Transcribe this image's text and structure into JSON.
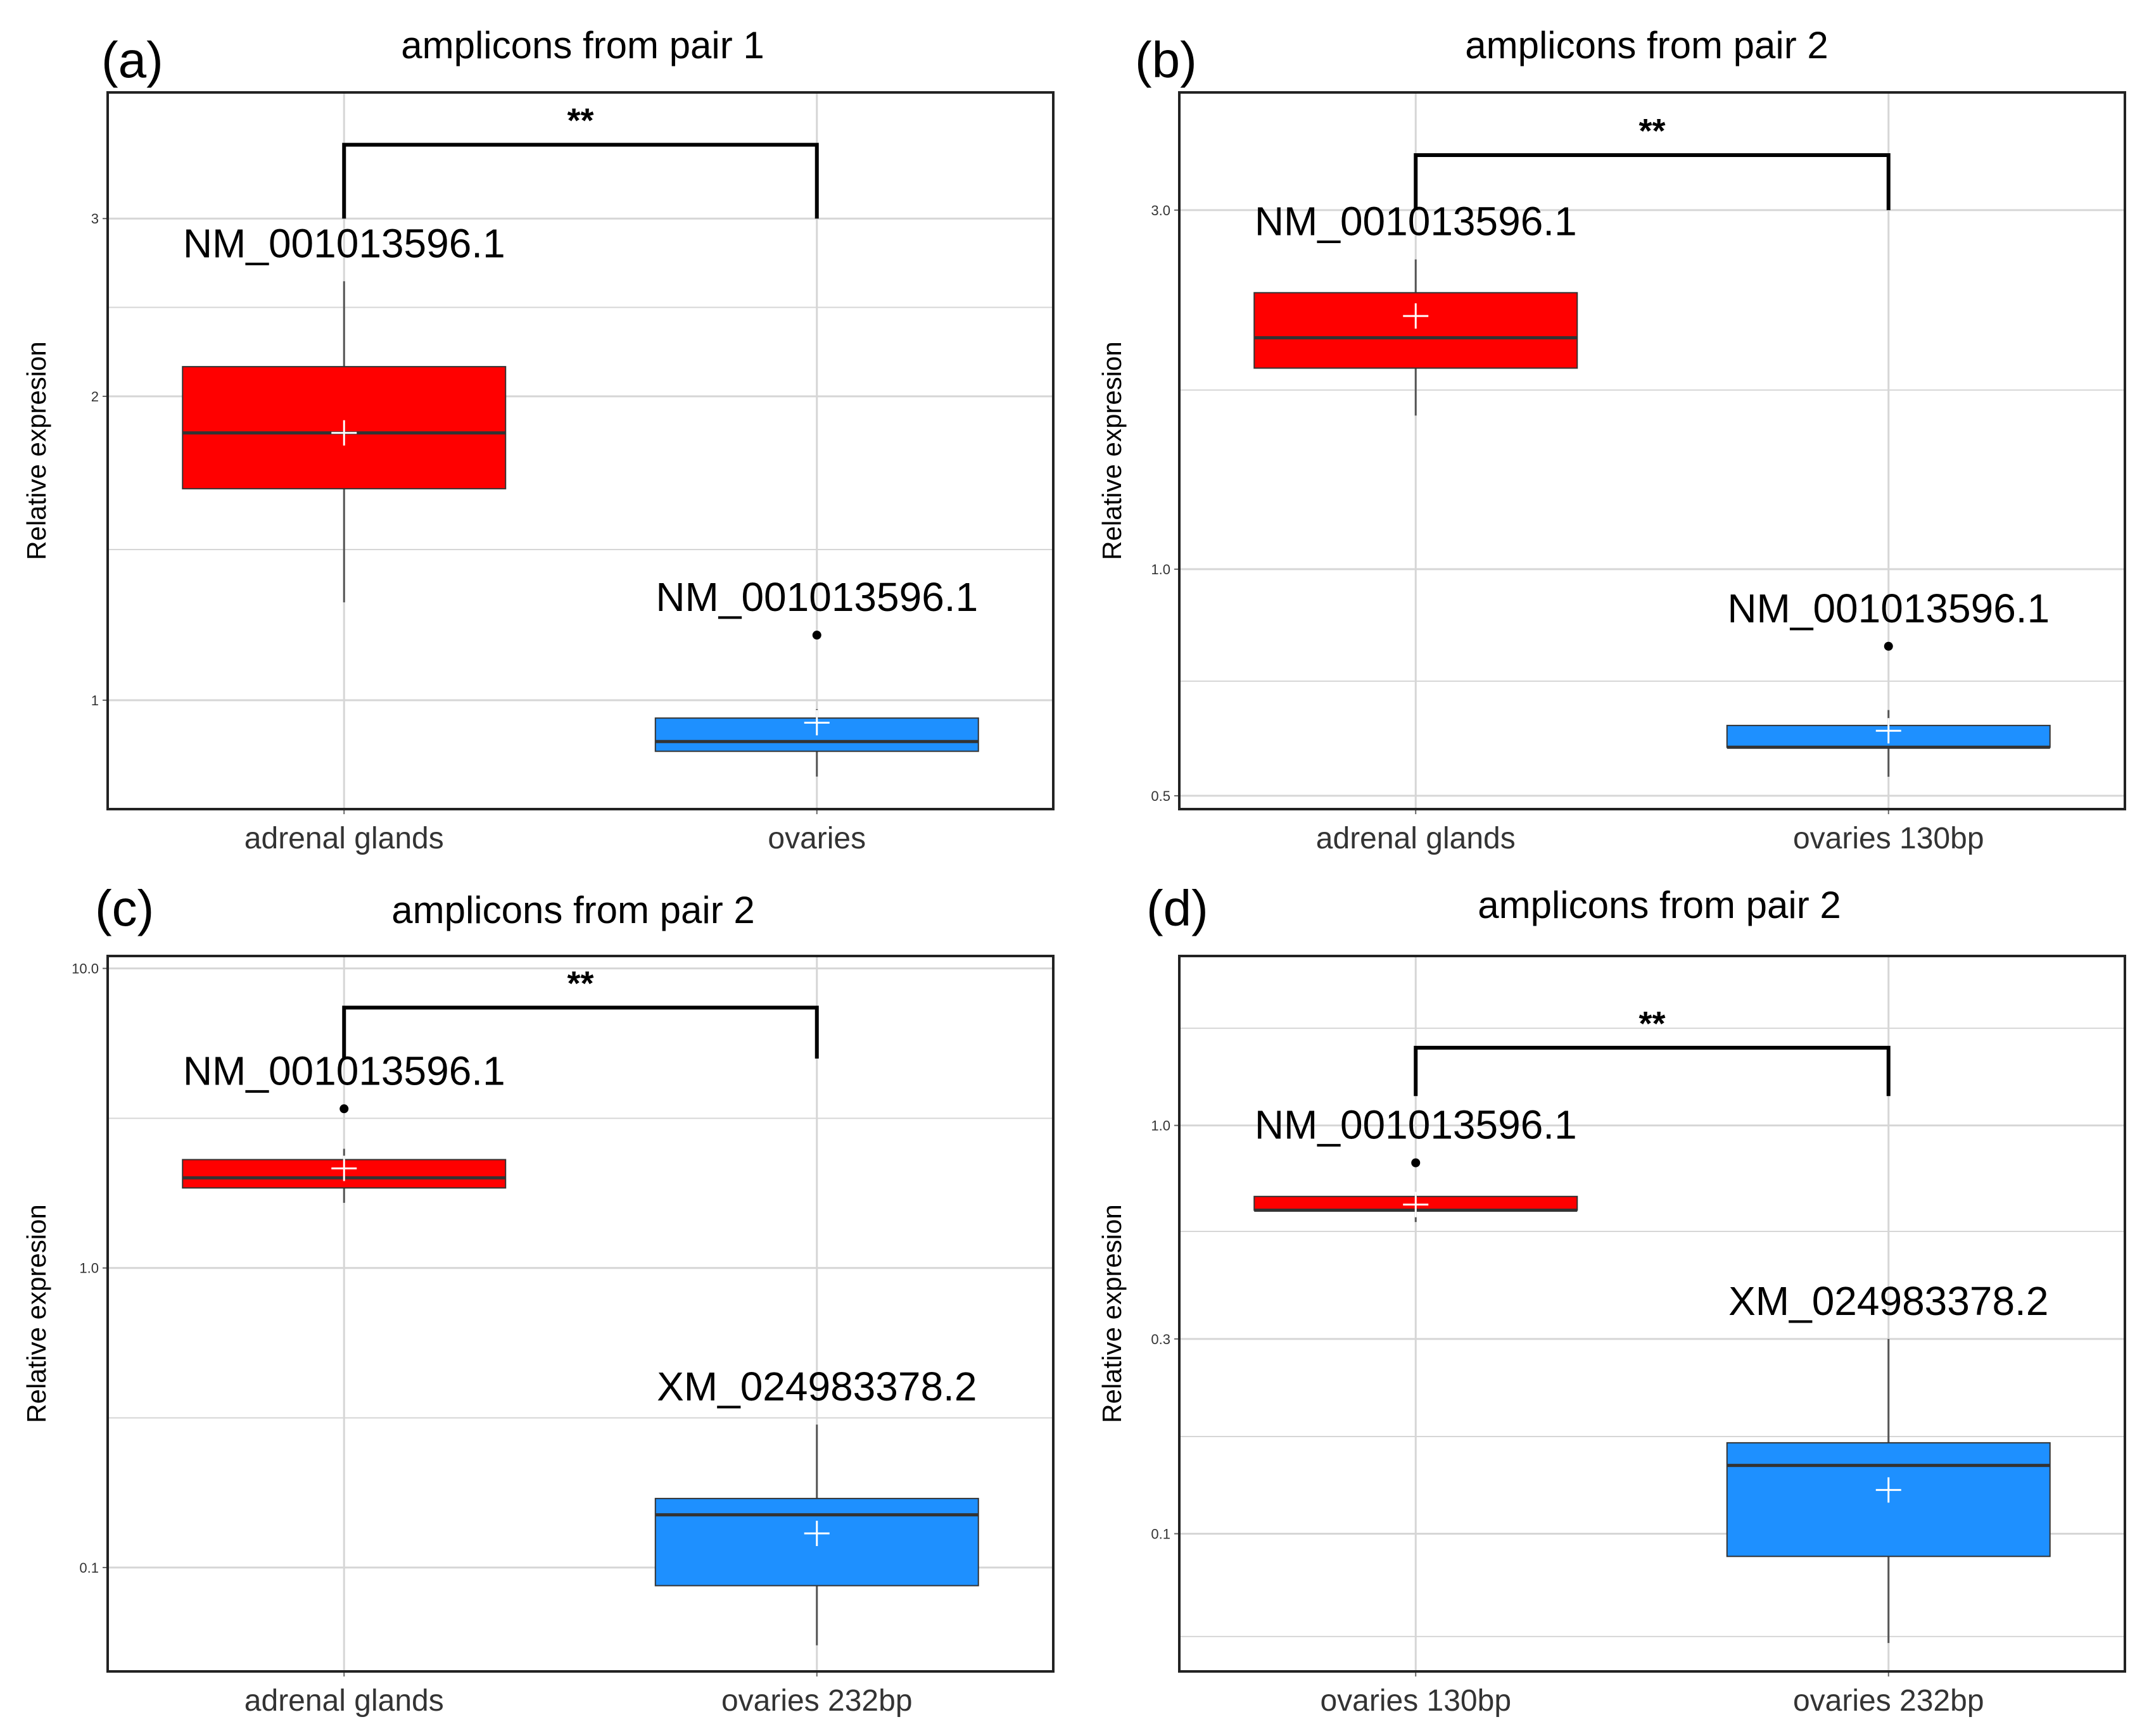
{
  "colors": {
    "adrenal": "#ff0000",
    "ovaries": "#1e90ff",
    "grid": "#d6d6d6",
    "axis": "#222222"
  },
  "chart_data": [
    {
      "type": "box",
      "label": "(a)",
      "title": "amplicons from pair 1",
      "xlabel": "",
      "ylabel": "Relative expresion",
      "yscale": "log",
      "ylim": [
        0.78,
        4.0
      ],
      "yticks": [
        {
          "v": 1,
          "t": "1"
        },
        {
          "v": 2,
          "t": "2"
        },
        {
          "v": 3,
          "t": "3"
        }
      ],
      "yminor": [
        1.41,
        2.45
      ],
      "categories": [
        "adrenal glands",
        "ovaries"
      ],
      "boxes": [
        {
          "whisker_low": 1.25,
          "q1": 1.62,
          "median": 1.84,
          "q3": 2.14,
          "whisker_high": 2.6,
          "mean": 1.84,
          "outliers": [],
          "color": "adrenal"
        },
        {
          "whisker_low": 0.84,
          "q1": 0.89,
          "median": 0.91,
          "q3": 0.96,
          "whisker_high": 0.98,
          "mean": 0.95,
          "outliers": [
            1.16
          ],
          "color": "ovaries"
        }
      ],
      "annotations": [
        "NM_001013596.1",
        "NM_001013596.1"
      ],
      "significance": "**",
      "bracket": {
        "y_top": 3.55,
        "y_left": 3.0,
        "y_right": 3.0
      }
    },
    {
      "type": "box",
      "label": "(b)",
      "title": "amplicons from pair 2",
      "xlabel": "",
      "ylabel": "Relative expresion",
      "yscale": "log",
      "ylim": [
        0.48,
        4.3
      ],
      "yticks": [
        {
          "v": 0.5,
          "t": "0.5"
        },
        {
          "v": 1.0,
          "t": "1.0"
        },
        {
          "v": 3.0,
          "t": "3.0"
        }
      ],
      "yminor": [
        0.71,
        1.73
      ],
      "categories": [
        "adrenal glands",
        "ovaries 130bp"
      ],
      "boxes": [
        {
          "whisker_low": 1.6,
          "q1": 1.85,
          "median": 2.03,
          "q3": 2.33,
          "whisker_high": 2.58,
          "mean": 2.17,
          "outliers": [],
          "color": "adrenal"
        },
        {
          "whisker_low": 0.53,
          "q1": 0.58,
          "median": 0.58,
          "q3": 0.62,
          "whisker_high": 0.65,
          "mean": 0.61,
          "outliers": [
            0.79
          ],
          "color": "ovaries"
        }
      ],
      "annotations": [
        "NM_001013596.1",
        "NM_001013596.1"
      ],
      "significance": "**",
      "bracket": {
        "y_top": 3.55,
        "y_left": 3.0,
        "y_right": 3.0
      }
    },
    {
      "type": "box",
      "label": "(c)",
      "title": "amplicons from pair 2",
      "xlabel": "",
      "ylabel": "Relative expresion",
      "yscale": "log",
      "ylim": [
        0.045,
        11.0
      ],
      "yticks": [
        {
          "v": 0.1,
          "t": "0.1"
        },
        {
          "v": 1.0,
          "t": "1.0"
        },
        {
          "v": 10.0,
          "t": "10.0"
        }
      ],
      "yminor": [
        0.316,
        3.16
      ],
      "categories": [
        "adrenal glands",
        "ovaries 232bp"
      ],
      "boxes": [
        {
          "whisker_low": 1.65,
          "q1": 1.85,
          "median": 2.0,
          "q3": 2.3,
          "whisker_high": 2.5,
          "mean": 2.15,
          "outliers": [
            3.4
          ],
          "color": "adrenal"
        },
        {
          "whisker_low": 0.055,
          "q1": 0.087,
          "median": 0.15,
          "q3": 0.17,
          "whisker_high": 0.3,
          "mean": 0.13,
          "outliers": [],
          "color": "ovaries"
        }
      ],
      "annotations": [
        "NM_001013596.1",
        "XM_024983378.2"
      ],
      "significance": "**",
      "bracket": {
        "y_top": 7.4,
        "y_left": 5.0,
        "y_right": 5.0
      }
    },
    {
      "type": "box",
      "label": "(d)",
      "title": "amplicons from pair 2",
      "xlabel": "",
      "ylabel": "Relative expresion",
      "yscale": "log",
      "ylim": [
        0.046,
        2.6
      ],
      "yticks": [
        {
          "v": 0.1,
          "t": "0.1"
        },
        {
          "v": 0.3,
          "t": "0.3"
        },
        {
          "v": 1.0,
          "t": "1.0"
        }
      ],
      "yminor": [
        0.056,
        0.173,
        0.55,
        1.73
      ],
      "categories": [
        "ovaries 130bp",
        "ovaries 232bp"
      ],
      "boxes": [
        {
          "whisker_low": 0.58,
          "q1": 0.62,
          "median": 0.62,
          "q3": 0.67,
          "whisker_high": 0.68,
          "mean": 0.64,
          "outliers": [
            0.81
          ],
          "color": "adrenal"
        },
        {
          "whisker_low": 0.054,
          "q1": 0.088,
          "median": 0.147,
          "q3": 0.167,
          "whisker_high": 0.3,
          "mean": 0.128,
          "outliers": [],
          "color": "ovaries"
        }
      ],
      "annotations": [
        "NM_001013596.1",
        "XM_024983378.2"
      ],
      "significance": "**",
      "bracket": {
        "y_top": 1.55,
        "y_left": 1.18,
        "y_right": 1.18
      }
    }
  ]
}
